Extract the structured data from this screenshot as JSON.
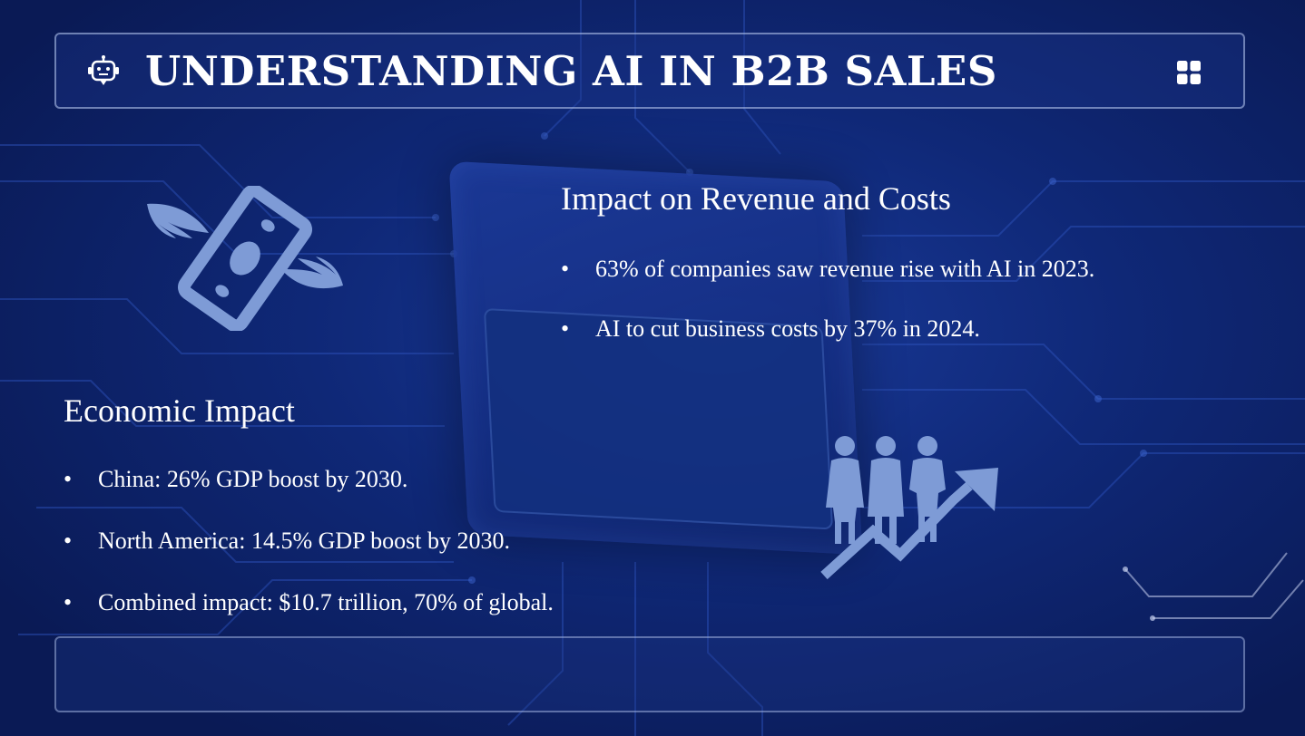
{
  "slide": {
    "title": "UNDERSTANDING AI IN B2B SALES",
    "icons": {
      "header_left": "robot-chat-icon",
      "header_right": "grid-icon",
      "money": "flying-money-icon",
      "growth": "people-growth-arrow-icon"
    },
    "colors": {
      "background": "#0d1f63",
      "icon_fill": "#7e9bd6",
      "text": "#ffffff"
    }
  },
  "revenue_section": {
    "heading": "Impact on Revenue and Costs",
    "bullets": [
      "63% of companies saw revenue rise with AI in 2023.",
      "AI to cut business costs by 37% in 2024."
    ]
  },
  "economic_section": {
    "heading": "Economic Impact",
    "bullets": [
      "China: 26% GDP boost by 2030.",
      "North America: 14.5% GDP boost by 2030.",
      "Combined impact: $10.7 trillion, 70% of global."
    ]
  }
}
